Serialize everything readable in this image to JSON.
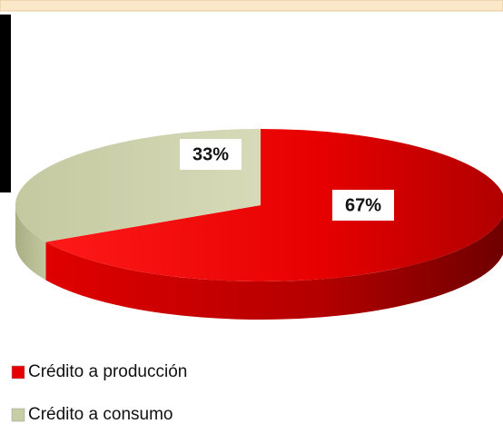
{
  "chart_data": {
    "type": "pie",
    "categories": [
      "Crédito a producción",
      "Crédito a consumo"
    ],
    "values": [
      67,
      33
    ],
    "value_labels": [
      "67%",
      "33%"
    ],
    "colors": [
      "#e60000",
      "#c9cda6"
    ]
  }
}
